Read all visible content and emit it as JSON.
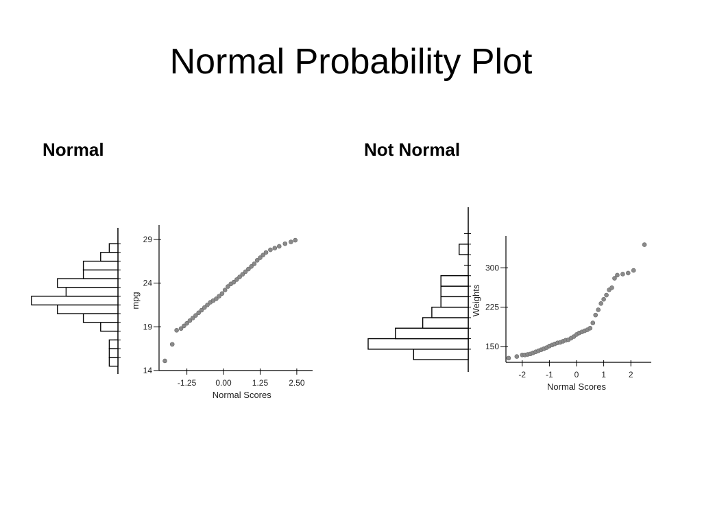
{
  "slide": {
    "title": "Normal Probability Plot",
    "left_heading": "Normal",
    "right_heading": "Not Normal"
  },
  "chart_data": [
    {
      "type": "scatter",
      "label": "Normal",
      "xlabel": "Normal Scores",
      "ylabel": "mpg",
      "xticks": [
        -1.25,
        0.0,
        1.25,
        2.5
      ],
      "xtick_labels": [
        "-1.25",
        "0.00",
        "1.25",
        "2.50"
      ],
      "yticks": [
        14,
        19,
        24,
        29
      ],
      "xlim": [
        -2.2,
        2.9
      ],
      "ylim": [
        14,
        30
      ],
      "marker_color": "#8a8a8a",
      "points": [
        [
          -2.0,
          15.1
        ],
        [
          -1.75,
          17.0
        ],
        [
          -1.6,
          18.6
        ],
        [
          -1.45,
          18.8
        ],
        [
          -1.35,
          19.1
        ],
        [
          -1.25,
          19.4
        ],
        [
          -1.15,
          19.7
        ],
        [
          -1.05,
          20.0
        ],
        [
          -0.95,
          20.3
        ],
        [
          -0.85,
          20.6
        ],
        [
          -0.75,
          20.9
        ],
        [
          -0.65,
          21.2
        ],
        [
          -0.55,
          21.5
        ],
        [
          -0.45,
          21.8
        ],
        [
          -0.35,
          22.0
        ],
        [
          -0.25,
          22.2
        ],
        [
          -0.15,
          22.5
        ],
        [
          -0.05,
          22.8
        ],
        [
          0.05,
          23.2
        ],
        [
          0.15,
          23.6
        ],
        [
          0.25,
          23.9
        ],
        [
          0.35,
          24.1
        ],
        [
          0.45,
          24.4
        ],
        [
          0.55,
          24.7
        ],
        [
          0.65,
          25.0
        ],
        [
          0.75,
          25.3
        ],
        [
          0.85,
          25.6
        ],
        [
          0.95,
          25.9
        ],
        [
          1.05,
          26.2
        ],
        [
          1.15,
          26.6
        ],
        [
          1.25,
          26.9
        ],
        [
          1.35,
          27.2
        ],
        [
          1.45,
          27.5
        ],
        [
          1.6,
          27.8
        ],
        [
          1.75,
          28.0
        ],
        [
          1.9,
          28.2
        ],
        [
          2.1,
          28.5
        ],
        [
          2.3,
          28.7
        ],
        [
          2.45,
          28.9
        ]
      ],
      "histogram": {
        "bins": [
          15,
          16,
          17,
          18,
          19,
          20,
          21,
          22,
          23,
          24,
          25,
          26,
          27,
          28
        ],
        "counts": [
          1,
          1,
          1,
          0,
          2,
          4,
          7,
          10,
          6,
          7,
          4,
          4,
          2,
          1
        ]
      }
    },
    {
      "type": "scatter",
      "label": "Not Normal",
      "xlabel": "Normal Scores",
      "ylabel": "Weights",
      "xticks": [
        -2,
        -1,
        0,
        1,
        2
      ],
      "xtick_labels": [
        "-2",
        "-1",
        "0",
        "1",
        "2"
      ],
      "yticks": [
        150,
        225,
        300
      ],
      "xlim": [
        -2.6,
        2.6
      ],
      "ylim": [
        120,
        350
      ],
      "marker_color": "#8a8a8a",
      "points": [
        [
          -2.5,
          128
        ],
        [
          -2.2,
          131
        ],
        [
          -2.0,
          134
        ],
        [
          -1.9,
          134
        ],
        [
          -1.8,
          135
        ],
        [
          -1.7,
          136
        ],
        [
          -1.6,
          138
        ],
        [
          -1.5,
          140
        ],
        [
          -1.4,
          142
        ],
        [
          -1.3,
          144
        ],
        [
          -1.2,
          146
        ],
        [
          -1.1,
          148
        ],
        [
          -1.0,
          151
        ],
        [
          -0.9,
          153
        ],
        [
          -0.8,
          155
        ],
        [
          -0.7,
          157
        ],
        [
          -0.6,
          158
        ],
        [
          -0.5,
          160
        ],
        [
          -0.4,
          162
        ],
        [
          -0.3,
          163
        ],
        [
          -0.2,
          166
        ],
        [
          -0.1,
          169
        ],
        [
          0.0,
          173
        ],
        [
          0.1,
          176
        ],
        [
          0.2,
          178
        ],
        [
          0.3,
          180
        ],
        [
          0.4,
          182
        ],
        [
          0.5,
          185
        ],
        [
          0.6,
          195
        ],
        [
          0.7,
          210
        ],
        [
          0.8,
          220
        ],
        [
          0.9,
          232
        ],
        [
          1.0,
          240
        ],
        [
          1.1,
          248
        ],
        [
          1.2,
          258
        ],
        [
          1.3,
          262
        ],
        [
          1.4,
          280
        ],
        [
          1.5,
          286
        ],
        [
          1.7,
          288
        ],
        [
          1.9,
          290
        ],
        [
          2.1,
          295
        ],
        [
          2.5,
          344
        ]
      ],
      "histogram": {
        "bins": [
          135,
          155,
          175,
          195,
          215,
          235,
          255,
          275,
          295,
          315,
          335,
          355
        ],
        "counts": [
          6,
          11,
          8,
          5,
          4,
          3,
          3,
          3,
          0,
          0,
          1,
          0
        ]
      }
    }
  ]
}
